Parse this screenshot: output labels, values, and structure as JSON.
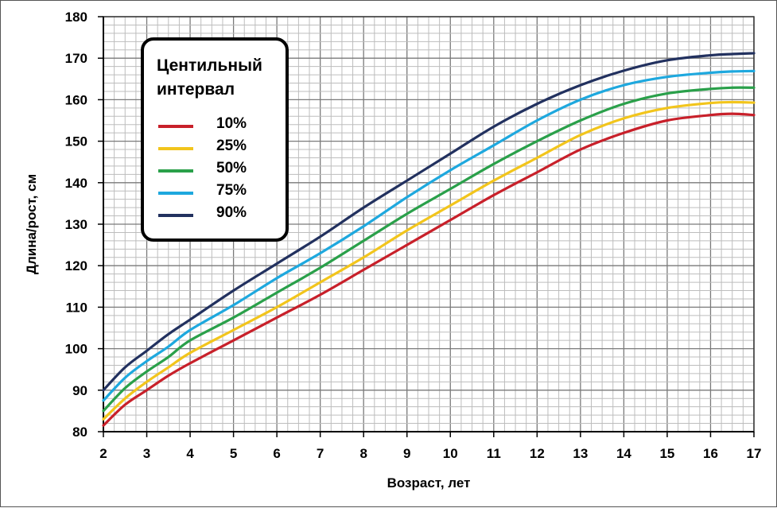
{
  "chart_data": {
    "type": "line",
    "xlabel": "Возраст, лет",
    "ylabel": "Длина/рост, см",
    "xlim": [
      2,
      17
    ],
    "ylim": [
      80,
      180
    ],
    "x_ticks": [
      2,
      3,
      4,
      5,
      6,
      7,
      8,
      9,
      10,
      11,
      12,
      13,
      14,
      15,
      16,
      17
    ],
    "y_ticks": [
      80,
      90,
      100,
      110,
      120,
      130,
      140,
      150,
      160,
      170,
      180
    ],
    "grid": true,
    "legend": {
      "title_lines": [
        "Центильный",
        "интервал"
      ],
      "placement": "top-left"
    },
    "x": [
      2,
      2.5,
      3,
      3.5,
      4,
      5,
      6,
      7,
      8,
      9,
      10,
      11,
      12,
      13,
      14,
      15,
      16,
      16.5,
      17
    ],
    "series": [
      {
        "name": "10%",
        "color": "#c8202a",
        "values": [
          81.5,
          86.5,
          90.0,
          93.5,
          96.5,
          102.0,
          107.5,
          113.0,
          119.0,
          125.0,
          131.0,
          137.0,
          142.5,
          148.0,
          152.0,
          155.0,
          156.3,
          156.6,
          156.3
        ]
      },
      {
        "name": "25%",
        "color": "#f2c51c",
        "values": [
          83.0,
          88.0,
          92.0,
          95.5,
          99.0,
          104.5,
          110.0,
          116.0,
          122.0,
          128.5,
          134.5,
          140.5,
          146.0,
          151.5,
          155.5,
          158.0,
          159.2,
          159.4,
          159.3
        ]
      },
      {
        "name": "50%",
        "color": "#2aa04a",
        "values": [
          85.0,
          90.5,
          94.5,
          98.0,
          102.0,
          107.5,
          113.5,
          119.5,
          126.0,
          132.5,
          138.5,
          144.5,
          150.0,
          155.0,
          159.0,
          161.5,
          162.6,
          162.9,
          162.9
        ]
      },
      {
        "name": "75%",
        "color": "#1ea8de",
        "values": [
          87.5,
          93.0,
          97.0,
          100.5,
          104.5,
          110.5,
          117.0,
          123.0,
          129.5,
          136.5,
          143.0,
          149.0,
          155.0,
          160.0,
          163.5,
          165.5,
          166.5,
          166.8,
          166.9
        ]
      },
      {
        "name": "90%",
        "color": "#22315f",
        "values": [
          90.0,
          95.5,
          99.5,
          103.5,
          107.0,
          114.0,
          120.5,
          127.0,
          134.0,
          140.5,
          147.0,
          153.5,
          159.0,
          163.5,
          167.0,
          169.5,
          170.7,
          171.0,
          171.2
        ]
      }
    ]
  }
}
